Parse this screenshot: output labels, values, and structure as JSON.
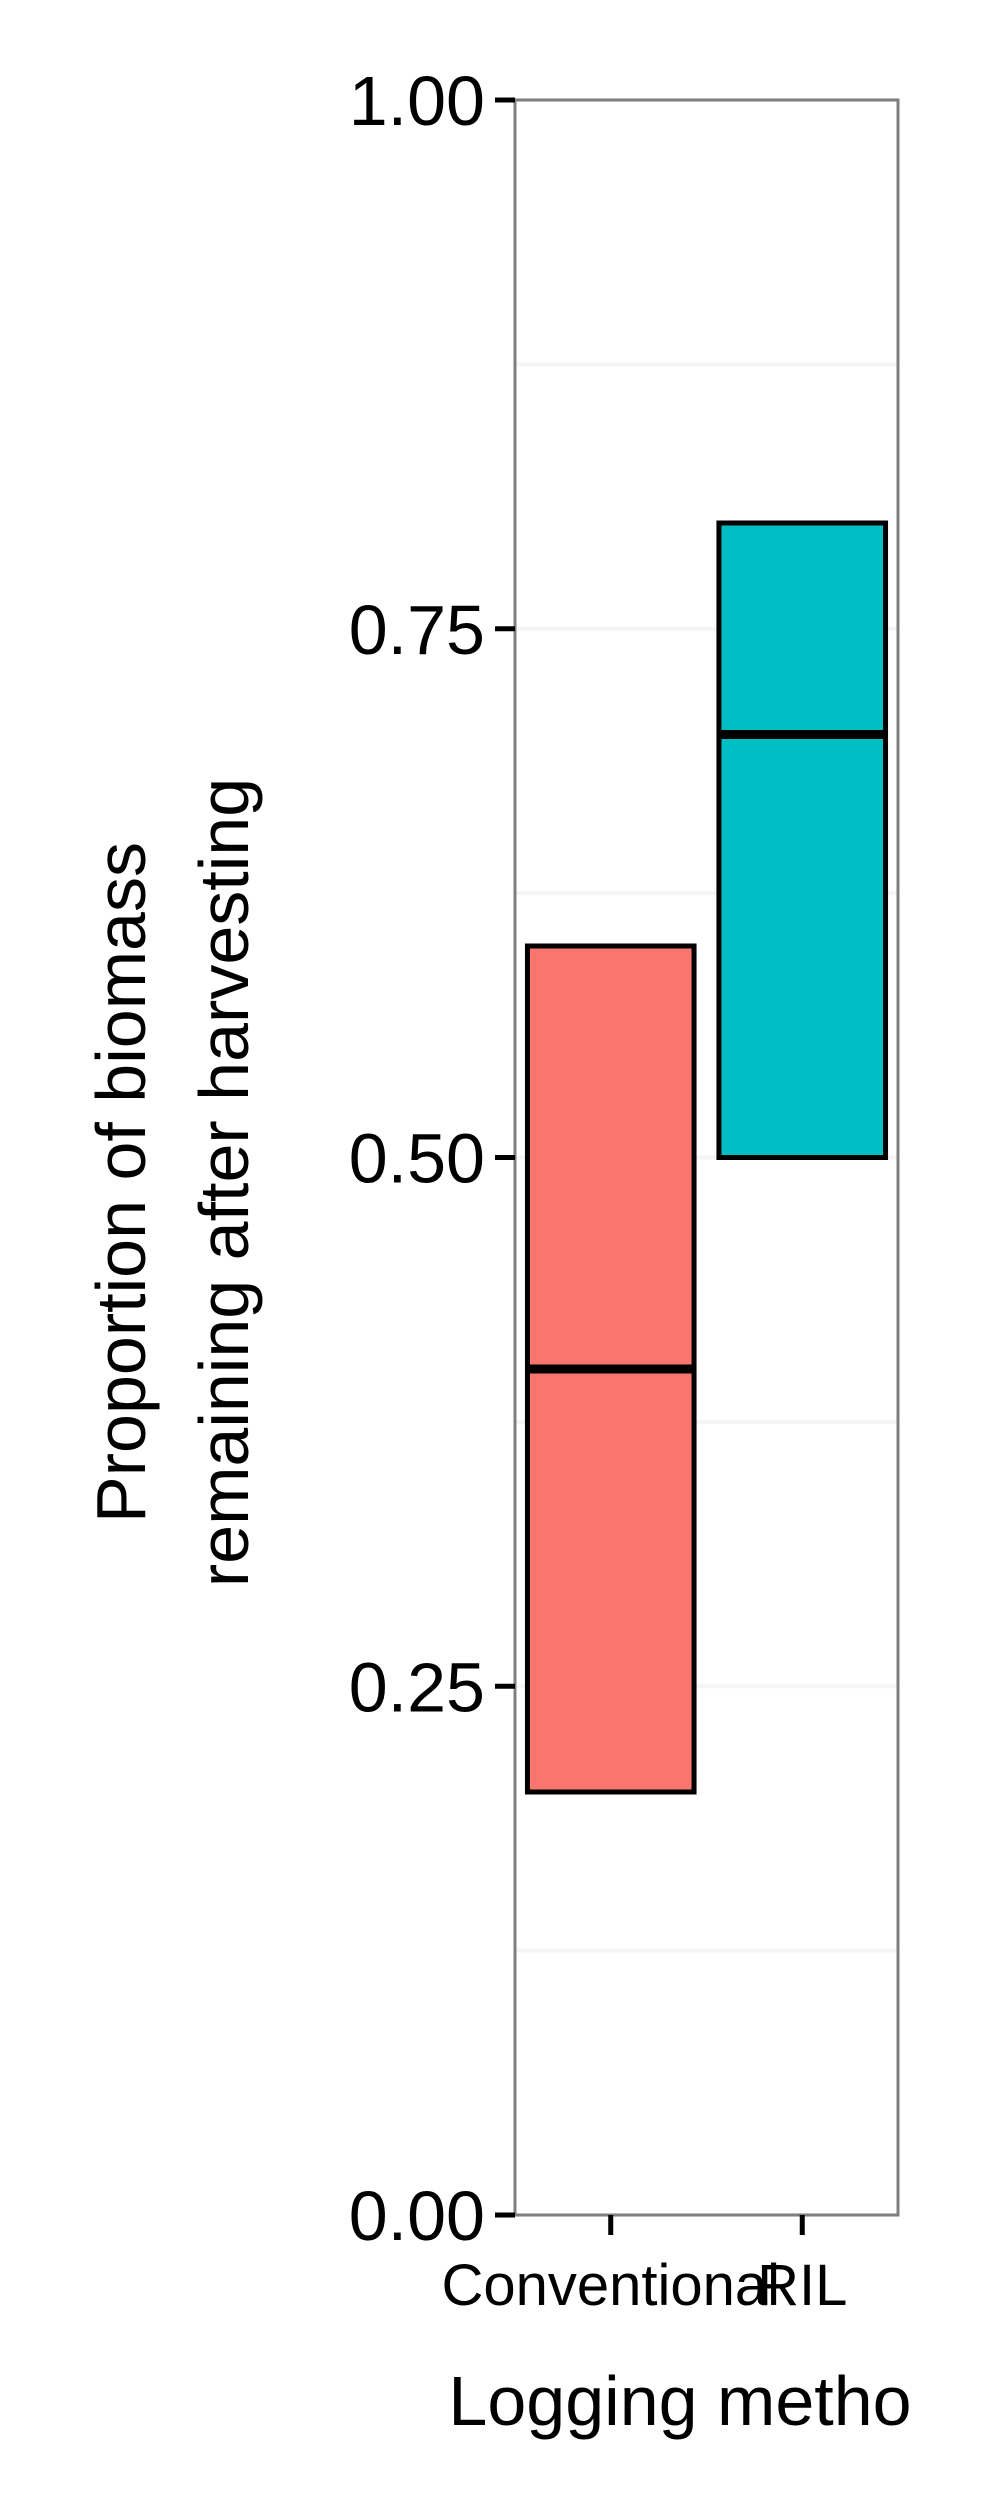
{
  "chart_data": {
    "type": "box",
    "title": "",
    "xlabel": "Logging metho",
    "ylabel": [
      "Proportion of biomass",
      "remaining after harvesting"
    ],
    "ylim": [
      0,
      1
    ],
    "yticks": [
      0,
      0.25,
      0.5,
      0.75,
      1
    ],
    "ytick_labels": [
      "0.00",
      "0.25",
      "0.50",
      "0.75",
      "1.00"
    ],
    "categories": [
      "Conventional",
      "RIL"
    ],
    "boxes": [
      {
        "category": "Conventional",
        "lower": 0.2,
        "median": 0.4,
        "upper": 0.6,
        "color": "#F8766D"
      },
      {
        "category": "RIL",
        "lower": 0.5,
        "median": 0.7,
        "upper": 0.8,
        "color": "#00BFC4"
      }
    ],
    "grid": true,
    "legend": "none",
    "colors": {
      "panel_background": "#FFFFFF",
      "panel_border": "#7F7F7F",
      "grid_line": "#F5F5F5",
      "median_line": "#000000",
      "box_border": "#000000"
    }
  }
}
